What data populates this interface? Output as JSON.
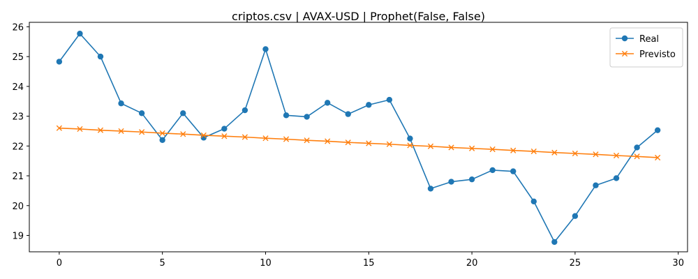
{
  "chart_data": {
    "type": "line",
    "title": "criptos.csv | AVAX-USD | Prophet(False, False)",
    "xlabel": "",
    "ylabel": "",
    "xlim": [
      -1.45,
      30.45
    ],
    "ylim": [
      18.45,
      26.15
    ],
    "x_ticks": [
      0,
      5,
      10,
      15,
      20,
      25,
      30
    ],
    "y_ticks": [
      19,
      20,
      21,
      22,
      23,
      24,
      25,
      26
    ],
    "grid": false,
    "legend_position": "top-right",
    "x": [
      0,
      1,
      2,
      3,
      4,
      5,
      6,
      7,
      8,
      9,
      10,
      11,
      12,
      13,
      14,
      15,
      16,
      17,
      18,
      19,
      20,
      21,
      22,
      23,
      24,
      25,
      26,
      27,
      28,
      29
    ],
    "series": [
      {
        "name": "Real",
        "color": "#1f77b4",
        "marker": "circle",
        "values": [
          24.83,
          25.77,
          25.0,
          23.43,
          23.1,
          22.2,
          23.1,
          22.28,
          22.58,
          23.2,
          25.25,
          23.03,
          22.98,
          23.45,
          23.07,
          23.38,
          23.55,
          22.25,
          20.57,
          20.8,
          20.88,
          21.19,
          21.15,
          20.14,
          18.78,
          19.65,
          20.68,
          20.92,
          21.95,
          22.53
        ]
      },
      {
        "name": "Previsto",
        "color": "#ff7f0e",
        "marker": "x",
        "values": [
          22.6,
          22.57,
          22.53,
          22.5,
          22.47,
          22.43,
          22.4,
          22.36,
          22.33,
          22.3,
          22.26,
          22.23,
          22.19,
          22.16,
          22.12,
          22.09,
          22.06,
          22.02,
          21.99,
          21.95,
          21.92,
          21.89,
          21.85,
          21.82,
          21.78,
          21.75,
          21.72,
          21.68,
          21.65,
          21.61
        ]
      }
    ]
  }
}
